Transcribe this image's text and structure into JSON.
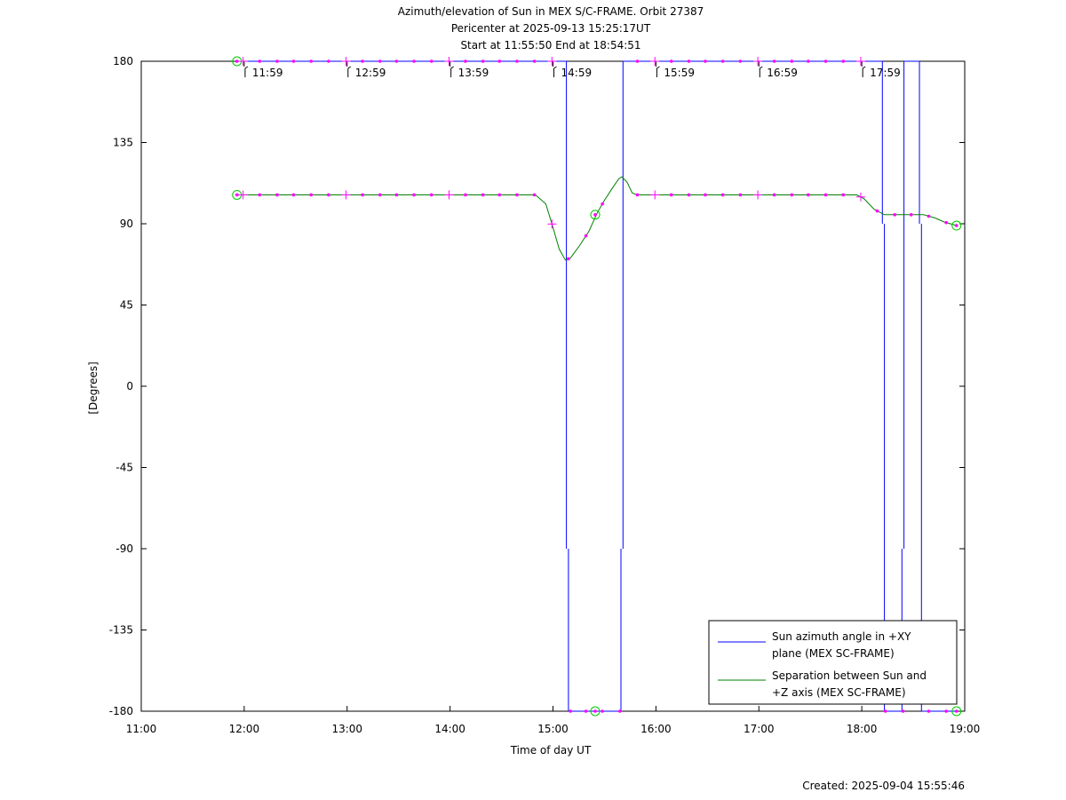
{
  "chart_data": {
    "type": "line",
    "title_lines": [
      "Azimuth/elevation of Sun in MEX S/C-FRAME.  Orbit 27387",
      "Pericenter at 2025-09-13 15:25:17UT",
      "Start at 11:55:50 End at 18:54:51"
    ],
    "xlabel": "Time of day UT",
    "ylabel": "[Degrees]",
    "xlim": [
      11.0,
      19.0
    ],
    "ylim": [
      -180,
      180
    ],
    "x_ticks": [
      {
        "v": 11,
        "label": "11:00"
      },
      {
        "v": 12,
        "label": "12:00"
      },
      {
        "v": 13,
        "label": "13:00"
      },
      {
        "v": 14,
        "label": "14:00"
      },
      {
        "v": 15,
        "label": "15:00"
      },
      {
        "v": 16,
        "label": "16:00"
      },
      {
        "v": 17,
        "label": "17:00"
      },
      {
        "v": 18,
        "label": "18:00"
      },
      {
        "v": 19,
        "label": "19:00"
      }
    ],
    "y_ticks": [
      {
        "v": 180,
        "label": "180"
      },
      {
        "v": 135,
        "label": "135"
      },
      {
        "v": 90,
        "label": "90"
      },
      {
        "v": 45,
        "label": "45"
      },
      {
        "v": 0,
        "label": "0"
      },
      {
        "v": -45,
        "label": "-45"
      },
      {
        "v": -90,
        "label": "-90"
      },
      {
        "v": -135,
        "label": "-135"
      },
      {
        "v": -180,
        "label": "-180"
      }
    ],
    "hour_markers": [
      {
        "x": 11.983,
        "label": "11:59"
      },
      {
        "x": 12.983,
        "label": "12:59"
      },
      {
        "x": 13.983,
        "label": "13:59"
      },
      {
        "x": 14.983,
        "label": "14:59"
      },
      {
        "x": 15.983,
        "label": "15:59"
      },
      {
        "x": 16.983,
        "label": "16:59"
      },
      {
        "x": 17.983,
        "label": "17:59"
      }
    ],
    "series": [
      {
        "name": "Sun azimuth angle in +XY plane (MEX SC-FRAME)",
        "color": "#0000ff",
        "segments": [
          [
            [
              11.93,
              180
            ],
            [
              15.13,
              180
            ]
          ],
          [
            [
              15.13,
              180
            ],
            [
              15.13,
              -90
            ]
          ],
          [
            [
              15.15,
              -90
            ],
            [
              15.15,
              -180
            ]
          ],
          [
            [
              15.15,
              -180
            ],
            [
              15.66,
              -180
            ]
          ],
          [
            [
              15.66,
              -180
            ],
            [
              15.66,
              -90
            ]
          ],
          [
            [
              15.68,
              -90
            ],
            [
              15.68,
              180
            ]
          ],
          [
            [
              15.68,
              180
            ],
            [
              18.2,
              180
            ]
          ],
          [
            [
              18.2,
              180
            ],
            [
              18.2,
              90
            ]
          ],
          [
            [
              18.22,
              90
            ],
            [
              18.22,
              -180
            ]
          ],
          [
            [
              18.22,
              -180
            ],
            [
              18.39,
              -180
            ]
          ],
          [
            [
              18.39,
              -180
            ],
            [
              18.39,
              -90
            ]
          ],
          [
            [
              18.41,
              -90
            ],
            [
              18.41,
              180
            ]
          ],
          [
            [
              18.41,
              180
            ],
            [
              18.56,
              180
            ]
          ],
          [
            [
              18.56,
              180
            ],
            [
              18.56,
              90
            ]
          ],
          [
            [
              18.58,
              90
            ],
            [
              18.58,
              -180
            ]
          ],
          [
            [
              18.58,
              -180
            ],
            [
              18.92,
              -180
            ]
          ]
        ]
      },
      {
        "name": "Separation between Sun and +Z axis (MEX SC-FRAME)",
        "color": "#008000",
        "points": [
          [
            11.93,
            106
          ],
          [
            14.83,
            106
          ],
          [
            14.93,
            101
          ],
          [
            15.0,
            88
          ],
          [
            15.06,
            76
          ],
          [
            15.12,
            70
          ],
          [
            15.17,
            71
          ],
          [
            15.26,
            78
          ],
          [
            15.35,
            86
          ],
          [
            15.43,
            96
          ],
          [
            15.5,
            103
          ],
          [
            15.58,
            110
          ],
          [
            15.64,
            115
          ],
          [
            15.67,
            116
          ],
          [
            15.72,
            113
          ],
          [
            15.77,
            107
          ],
          [
            15.82,
            106
          ],
          [
            17.95,
            106
          ],
          [
            18.02,
            104
          ],
          [
            18.12,
            98
          ],
          [
            18.22,
            95
          ],
          [
            18.6,
            95
          ],
          [
            18.72,
            93
          ],
          [
            18.8,
            91
          ],
          [
            18.92,
            89
          ]
        ]
      }
    ],
    "markers": {
      "color": "#ff00ff",
      "azimuth_dots_x": [
        12.15,
        12.32,
        12.48,
        12.65,
        12.82,
        13.15,
        13.32,
        13.48,
        13.65,
        13.82,
        14.15,
        14.32,
        14.48,
        14.65,
        14.82,
        15.82,
        16.15,
        16.32,
        16.48,
        16.65,
        16.82,
        17.15,
        17.32,
        17.48,
        17.65,
        17.82
      ],
      "azimuth_bottom_dots_x": [
        15.17,
        15.32,
        15.48,
        15.65,
        18.23,
        18.4,
        18.65,
        18.82
      ],
      "separation_dots_x": [
        12.15,
        12.32,
        12.48,
        12.65,
        12.82,
        13.15,
        13.32,
        13.48,
        13.65,
        13.82,
        14.15,
        14.32,
        14.48,
        14.65,
        14.82,
        15.15,
        15.32,
        15.48,
        15.82,
        16.15,
        16.32,
        16.48,
        16.65,
        16.82,
        17.15,
        17.32,
        17.48,
        17.65,
        17.82,
        18.15,
        18.32,
        18.48,
        18.65,
        18.82
      ],
      "hour_crosses_x": [
        11.99,
        12.99,
        13.99,
        14.99,
        15.99,
        16.99,
        17.99
      ],
      "circles": [
        [
          11.93,
          180
        ],
        [
          11.93,
          106
        ],
        [
          15.41,
          95
        ],
        [
          15.41,
          -180
        ],
        [
          18.92,
          89
        ],
        [
          18.92,
          -180
        ]
      ]
    },
    "legend_position": "bottom-right",
    "legend": [
      {
        "line1": "Sun azimuth angle in +XY",
        "line2": "plane (MEX SC-FRAME)",
        "color": "#0000ff"
      },
      {
        "line1": "Separation between Sun and",
        "line2": "+Z axis (MEX SC-FRAME)",
        "color": "#008000"
      }
    ],
    "footer": "Created: 2025-09-04 15:55:46"
  }
}
